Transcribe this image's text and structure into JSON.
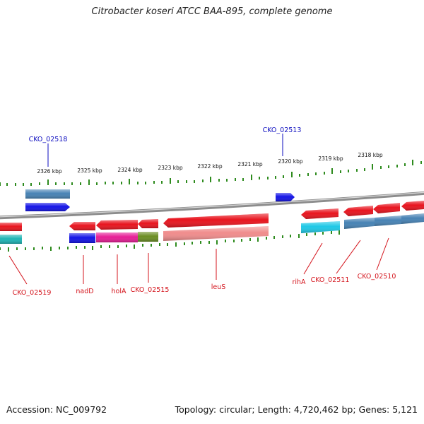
{
  "title": "Citrobacter koseri ATCC BAA-895, complete genome",
  "footer": {
    "accession": "Accession: NC_009792",
    "summary": "Topology: circular; Length: 4,720,462 bp; Genes: 5,121"
  },
  "scale_labels": [
    "2326 kbp",
    "2325 kbp",
    "2324 kbp",
    "2323 kbp",
    "2322 kbp",
    "2321 kbp",
    "2320 kbp",
    "2319 kbp",
    "2318 kbp"
  ],
  "top_gene_labels": [
    "CKO_02518",
    "CKO_02513"
  ],
  "bottom_gene_labels": [
    "CKO_02519",
    "nadD",
    "holA",
    "CKO_02515",
    "leuS",
    "rihA",
    "CKO_02511",
    "CKO_02510"
  ],
  "colors": {
    "backbone": "#8c8c8c",
    "tick": "#2e8b1e",
    "label_top": "#0b0bbf",
    "label_bottom": "#d4141c",
    "gene_red": "#e8141e",
    "gene_blue": "#1414e6",
    "gene_steel": "#4682b4",
    "gene_cyan": "#1ec8e6",
    "gene_teal": "#1fb4b4",
    "gene_magenta": "#e61e96",
    "gene_olive": "#6b8e23",
    "gene_pink": "#f08c8c"
  }
}
